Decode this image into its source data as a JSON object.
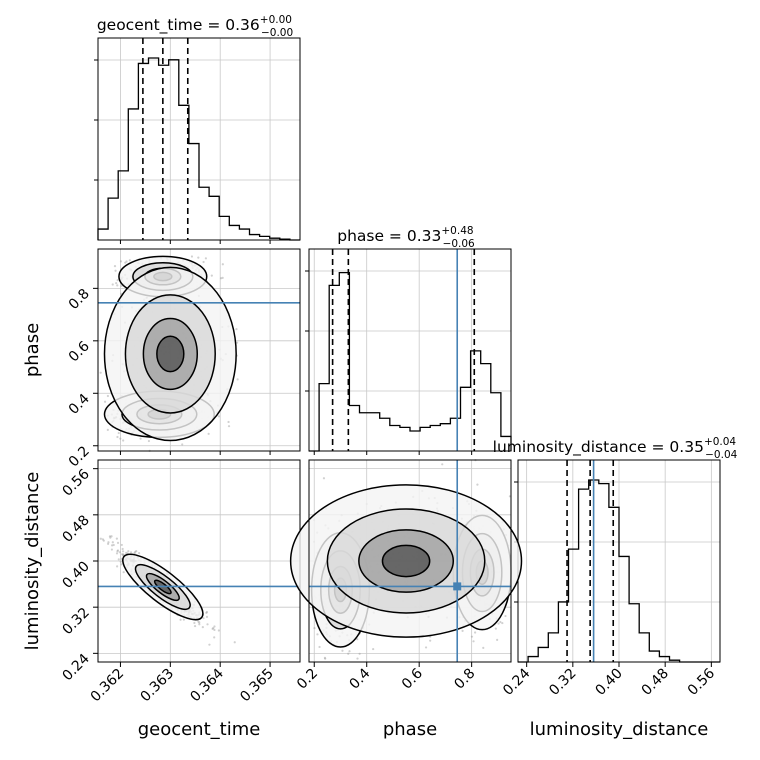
{
  "chart_data": {
    "type": "corner",
    "parameters": [
      {
        "name": "geocent_time",
        "xlabel": "geocent_time",
        "ylabel": "",
        "range": [
          0.36155,
          0.3656
        ],
        "xticks": [
          "0.362",
          "0.363",
          "0.364",
          "0.365"
        ],
        "xtick_values": [
          0.362,
          0.363,
          0.364,
          0.365
        ],
        "title": {
          "prefix": "geocent_time = ",
          "value": "0.36",
          "plus": "+0.00",
          "minus": "−0.00"
        },
        "quantiles": [
          0.36245,
          0.36285,
          0.36335
        ],
        "truth": null,
        "hist_values": [
          0.06,
          0.23,
          0.38,
          0.72,
          0.97,
          1.0,
          0.96,
          0.99,
          0.74,
          0.53,
          0.29,
          0.24,
          0.13,
          0.08,
          0.06,
          0.03,
          0.02,
          0.01,
          0.005,
          0.0
        ]
      },
      {
        "name": "phase",
        "xlabel": "phase",
        "ylabel": "phase",
        "range": [
          0.18,
          0.95
        ],
        "xticks": [
          "0.2",
          "0.4",
          "0.6",
          "0.8"
        ],
        "xtick_values": [
          0.2,
          0.4,
          0.6,
          0.8
        ],
        "yticks": [
          "0.2",
          "0.4",
          "0.6",
          "0.8"
        ],
        "ytick_values": [
          0.2,
          0.4,
          0.6,
          0.8
        ],
        "title": {
          "prefix": "phase = ",
          "value": "0.33",
          "plus": "+0.48",
          "minus": "−0.06"
        },
        "quantiles": [
          0.27,
          0.33,
          0.81
        ],
        "truth": 0.745,
        "hist_values": [
          0.0,
          0.37,
          0.91,
          0.98,
          0.25,
          0.21,
          0.21,
          0.18,
          0.14,
          0.13,
          0.11,
          0.13,
          0.14,
          0.15,
          0.18,
          0.35,
          0.55,
          0.48,
          0.32,
          0.08
        ]
      },
      {
        "name": "luminosity_distance",
        "xlabel": "luminosity_distance",
        "ylabel": "luminosity_distance",
        "range": [
          0.225,
          0.575
        ],
        "xticks": [
          "0.24",
          "0.32",
          "0.40",
          "0.48",
          "0.56"
        ],
        "xtick_values": [
          0.24,
          0.32,
          0.4,
          0.48,
          0.56
        ],
        "yticks": [
          "0.24",
          "0.32",
          "0.40",
          "0.48",
          "0.56"
        ],
        "ytick_values": [
          0.24,
          0.32,
          0.4,
          0.48,
          0.56
        ],
        "title": {
          "prefix": "luminosity_distance = ",
          "value": "0.35",
          "plus": "+0.04",
          "minus": "−0.04"
        },
        "quantiles": [
          0.31,
          0.35,
          0.39
        ],
        "truth": 0.356,
        "hist_values": [
          0.0,
          0.03,
          0.08,
          0.16,
          0.33,
          0.62,
          0.95,
          1.0,
          0.98,
          0.85,
          0.58,
          0.32,
          0.16,
          0.06,
          0.03,
          0.01,
          0.0,
          0.0,
          0.0,
          0.0
        ]
      }
    ],
    "scatter": {
      "phase_vs_geocent_time": {
        "clusters": [
          {
            "cx": 0.36278,
            "cy": 0.32,
            "sx": 0.0005,
            "sy": 0.04,
            "n": 420
          },
          {
            "cx": 0.36285,
            "cy": 0.845,
            "sx": 0.0004,
            "sy": 0.035,
            "n": 300
          },
          {
            "cx": 0.363,
            "cy": 0.55,
            "sx": 0.0006,
            "sy": 0.15,
            "n": 200
          }
        ]
      },
      "luminosity_distance_vs_geocent_time": {
        "clusters": [
          {
            "cx": 0.36285,
            "cy": 0.355,
            "sx": 0.00045,
            "slope": -70,
            "sy": 0.012,
            "n": 600
          }
        ]
      },
      "luminosity_distance_vs_phase": {
        "clusters": [
          {
            "cx": 0.3,
            "cy": 0.35,
            "sx": 0.05,
            "sy": 0.045,
            "n": 400
          },
          {
            "cx": 0.84,
            "cy": 0.38,
            "sx": 0.05,
            "sy": 0.045,
            "n": 300
          },
          {
            "cx": 0.55,
            "cy": 0.4,
            "sx": 0.2,
            "sy": 0.06,
            "n": 250
          }
        ]
      }
    },
    "grid": true,
    "contours": {
      "line_color": "#000000"
    },
    "colors": {
      "truth": "#4682b4",
      "quantile": "#000000",
      "points": "#9a9a9a",
      "grid": "#c8c8c8"
    }
  }
}
